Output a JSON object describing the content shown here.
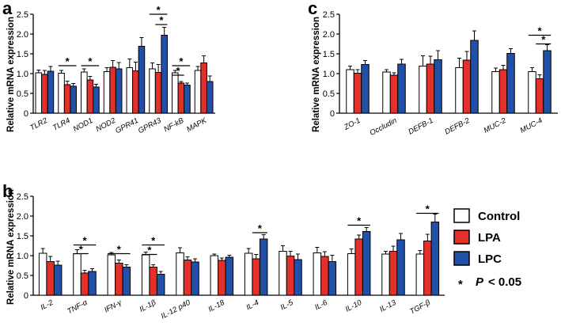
{
  "colors": {
    "control": "#ffffff",
    "lpa": "#e3302a",
    "lpc": "#2150a8",
    "stroke": "#000000"
  },
  "legend": {
    "control": "Control",
    "lpa": "LPA",
    "lpc": "LPC",
    "sig_star": "*",
    "sig_p": "P",
    "sig_threshold": "< 0.05"
  },
  "chart_data": [
    {
      "panel": "a",
      "type": "bar",
      "ylabel": "Relative mRNA expression",
      "ylim": [
        0,
        2.5
      ],
      "yticks": [
        "0",
        "0.5",
        "1.0",
        "1.5",
        "2.0",
        "2.5"
      ],
      "categories": [
        "TLR2",
        "TLR4",
        "NOD1",
        "NOD2",
        "GPR41",
        "GPR43",
        "NF-kB",
        "MAPK"
      ],
      "series": [
        {
          "name": "Control",
          "values": [
            1.02,
            1.01,
            1.04,
            1.05,
            1.15,
            1.12,
            1.02,
            1.08
          ],
          "errors": [
            0.07,
            0.07,
            0.08,
            0.1,
            0.22,
            0.15,
            0.06,
            0.1
          ]
        },
        {
          "name": "LPA",
          "values": [
            0.98,
            0.72,
            0.84,
            1.16,
            1.07,
            1.03,
            0.76,
            1.27
          ],
          "errors": [
            0.1,
            0.09,
            0.09,
            0.17,
            0.22,
            0.2,
            0.04,
            0.18
          ]
        },
        {
          "name": "LPC",
          "values": [
            1.06,
            0.68,
            0.66,
            1.12,
            1.69,
            1.97,
            0.71,
            0.8
          ],
          "errors": [
            0.12,
            0.07,
            0.07,
            0.16,
            0.22,
            0.2,
            0.05,
            0.14
          ]
        }
      ],
      "significance": [
        {
          "category": 1,
          "from": 0,
          "to": 2,
          "y": 1.2,
          "label": "*"
        },
        {
          "category": 2,
          "from": 0,
          "to": 2,
          "y": 1.2,
          "label": "*"
        },
        {
          "category": 5,
          "from": 0,
          "to": 2,
          "y": 2.5,
          "label": "*"
        },
        {
          "category": 5,
          "from": 1,
          "to": 2,
          "y": 2.24,
          "label": "*"
        },
        {
          "category": 6,
          "from": 0,
          "to": 2,
          "y": 1.2,
          "label": "*"
        },
        {
          "category": 6,
          "from": 0,
          "to": 1,
          "y": 0.96,
          "label": "*"
        }
      ]
    },
    {
      "panel": "b",
      "type": "bar",
      "ylabel": "Relative mRNA expression",
      "ylim": [
        0,
        2.5
      ],
      "yticks": [
        "0",
        "0.5",
        "1.0",
        "1.5",
        "2.0",
        "2.5"
      ],
      "categories": [
        "IL-2",
        "TNF-α",
        "IFN-γ",
        "IL-1β",
        "IL-12 p40",
        "IL-18",
        "IL-4",
        "IL-5",
        "IL-6",
        "IL-10",
        "IL-13",
        "TGF-β"
      ],
      "series": [
        {
          "name": "Control",
          "values": [
            1.06,
            1.05,
            1.02,
            1.02,
            1.07,
            1.0,
            1.06,
            1.11,
            1.07,
            1.05,
            1.04,
            1.04
          ],
          "errors": [
            0.12,
            0.1,
            0.06,
            0.07,
            0.13,
            0.04,
            0.12,
            0.14,
            0.14,
            0.12,
            0.07,
            0.09
          ]
        },
        {
          "name": "LPA",
          "values": [
            0.85,
            0.56,
            0.81,
            0.71,
            0.89,
            0.88,
            0.92,
            0.99,
            0.98,
            1.42,
            1.11,
            1.37
          ],
          "errors": [
            0.13,
            0.07,
            0.08,
            0.06,
            0.08,
            0.06,
            0.11,
            0.12,
            0.12,
            0.1,
            0.13,
            0.17
          ]
        },
        {
          "name": "LPC",
          "values": [
            0.76,
            0.6,
            0.71,
            0.53,
            0.84,
            0.96,
            1.42,
            0.9,
            0.85,
            1.61,
            1.4,
            1.85
          ],
          "errors": [
            0.1,
            0.07,
            0.06,
            0.07,
            0.08,
            0.05,
            0.11,
            0.14,
            0.16,
            0.1,
            0.16,
            0.2
          ]
        }
      ],
      "significance": [
        {
          "category": 1,
          "from": 0,
          "to": 2,
          "y": 1.27,
          "label": "*"
        },
        {
          "category": 1,
          "from": 0,
          "to": 1,
          "y": 1.05,
          "label": "*"
        },
        {
          "category": 2,
          "from": 0,
          "to": 2,
          "y": 1.05,
          "label": "*"
        },
        {
          "category": 3,
          "from": 0,
          "to": 2,
          "y": 1.27,
          "label": "*"
        },
        {
          "category": 3,
          "from": 0,
          "to": 1,
          "y": 1.03,
          "label": "*"
        },
        {
          "category": 6,
          "from": 1,
          "to": 2,
          "y": 1.58,
          "label": "*"
        },
        {
          "category": 9,
          "from": 0,
          "to": 2,
          "y": 1.77,
          "label": "*"
        },
        {
          "category": 11,
          "from": 0,
          "to": 2,
          "y": 2.07,
          "label": "*"
        }
      ]
    },
    {
      "panel": "c",
      "type": "bar",
      "ylabel": "Relative mRNA expression",
      "ylim": [
        0,
        2.5
      ],
      "yticks": [
        "0",
        "0.5",
        "1.0",
        "1.5",
        "2.0",
        "2.5"
      ],
      "categories": [
        "ZO-1",
        "Occludin",
        "DEFB-1",
        "DEFB-2",
        "MUC-2",
        "MUC-4"
      ],
      "series": [
        {
          "name": "Control",
          "values": [
            1.1,
            1.04,
            1.19,
            1.15,
            1.05,
            1.05
          ],
          "errors": [
            0.09,
            0.06,
            0.26,
            0.24,
            0.09,
            0.1
          ]
        },
        {
          "name": "LPA",
          "values": [
            1.01,
            0.96,
            1.24,
            1.34,
            1.1,
            0.87
          ],
          "errors": [
            0.09,
            0.06,
            0.2,
            0.22,
            0.11,
            0.1
          ]
        },
        {
          "name": "LPC",
          "values": [
            1.23,
            1.24,
            1.35,
            1.84,
            1.51,
            1.58
          ],
          "errors": [
            0.1,
            0.12,
            0.23,
            0.24,
            0.12,
            0.15
          ]
        }
      ],
      "significance": [
        {
          "category": 5,
          "from": 0,
          "to": 2,
          "y": 1.97,
          "label": "*"
        },
        {
          "category": 5,
          "from": 1,
          "to": 2,
          "y": 1.75,
          "label": "*"
        }
      ]
    }
  ]
}
